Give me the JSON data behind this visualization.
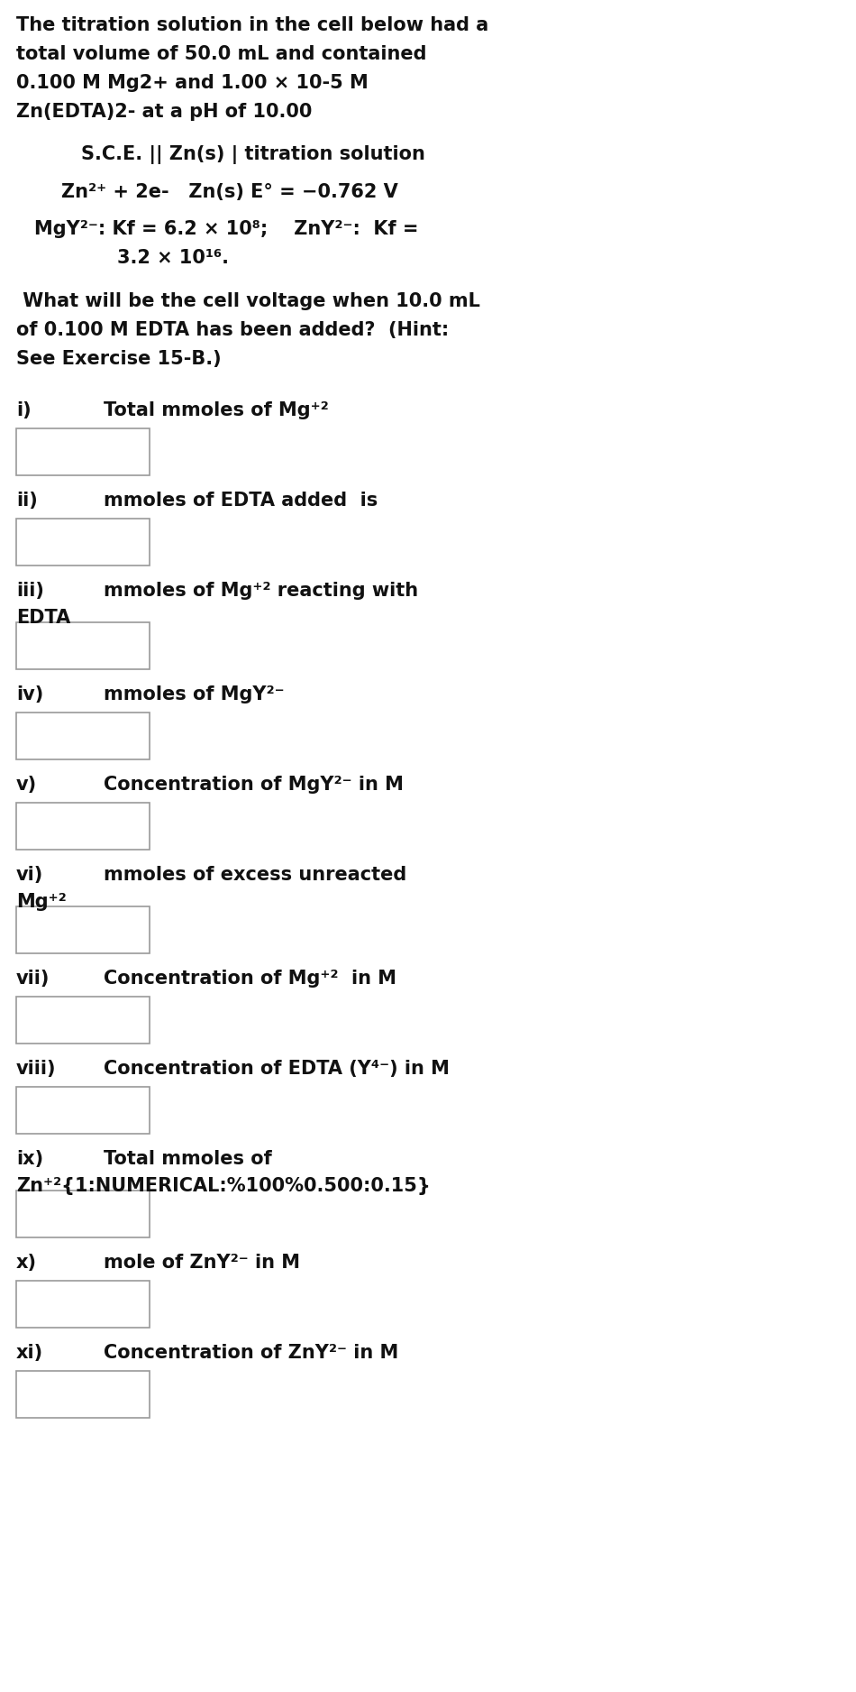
{
  "bg_color": "#dce9f0",
  "right_bg": "#f5f5f5",
  "white": "#ffffff",
  "text_color": "#111111",
  "figsize": [
    9.5,
    18.76
  ],
  "dpi": 100,
  "intro_lines": [
    "The titration solution in the cell below had a",
    "total volume of 50.0 mL and contained",
    "0.100 M Mg2+ and 1.00 × 10-5 M",
    "Zn(EDTA)2- at a pH of 10.00"
  ],
  "cell_line": "S.C.E. || Zn(s) | titration solution",
  "eq_line": "Zn²⁺ + 2e-   Zn(s) E° = −0.762 V",
  "kf_line1": "MgY²⁻: Kf = 6.2 × 10⁸;    ZnY²⁻:  Kf =",
  "kf_line2": "3.2 × 10¹⁶.",
  "question_lines": [
    " What will be the cell voltage when 10.0 mL",
    "of 0.100 M EDTA has been added?  (Hint:",
    "See Exercise 15-B.)"
  ],
  "items": [
    {
      "label": "i)",
      "line1": "Total mmoles of Mg⁺²",
      "line2": null
    },
    {
      "label": "ii)",
      "line1": "mmoles of EDTA added  is",
      "line2": null
    },
    {
      "label": "iii)",
      "line1": "mmoles of Mg⁺² reacting with",
      "line2": "EDTA"
    },
    {
      "label": "iv)",
      "line1": "mmoles of MgY²⁻",
      "line2": null
    },
    {
      "label": "v)",
      "line1": "Concentration of MgY²⁻ in M",
      "line2": null
    },
    {
      "label": "vi)",
      "line1": "mmoles of excess unreacted",
      "line2": "Mg⁺²"
    },
    {
      "label": "vii)",
      "line1": "Concentration of Mg⁺²  in M",
      "line2": null
    },
    {
      "label": "viii)",
      "line1": "Concentration of EDTA (Y⁴⁻) in M",
      "line2": null
    },
    {
      "label": "ix)",
      "line1": "Total mmoles of",
      "line2": "Zn⁺²{1:NUMERICAL:%100%0.500:0.15}"
    },
    {
      "label": "x)",
      "line1": "mole of ZnY²⁻ in M",
      "line2": null
    },
    {
      "label": "xi)",
      "line1": "Concentration of ZnY²⁻ in M",
      "line2": null
    }
  ]
}
